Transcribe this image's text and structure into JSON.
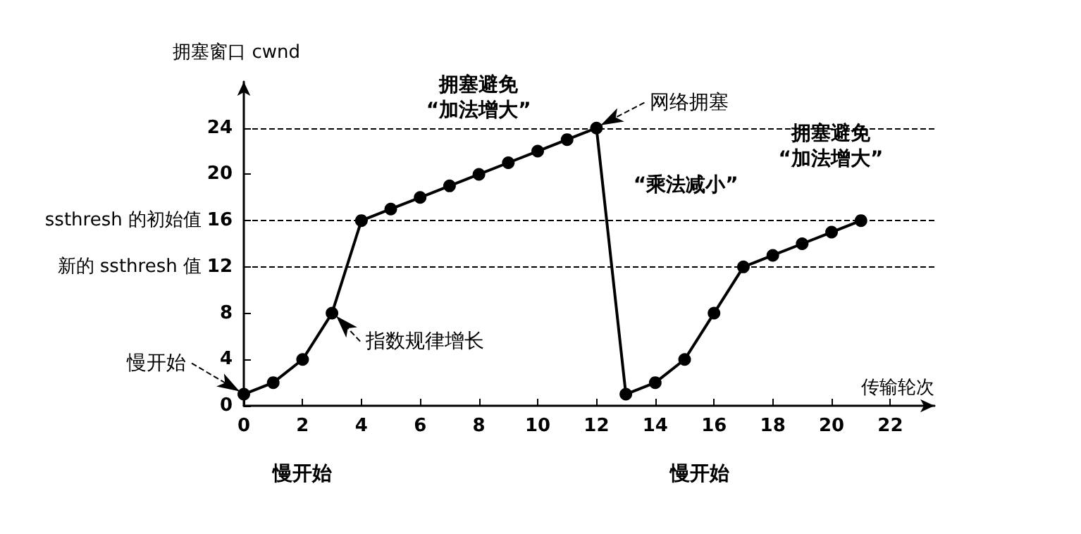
{
  "chart_data": {
    "type": "line",
    "ylabel": "拥塞窗口 cwnd",
    "xlabel": "传输轮次",
    "series": [
      {
        "color": "#000000",
        "x": [
          0,
          1,
          2,
          3,
          4,
          5,
          6,
          7,
          8,
          9,
          10,
          11,
          12,
          13,
          14,
          15,
          16,
          17,
          18,
          19,
          20,
          21
        ],
        "values": [
          1,
          2,
          4,
          8,
          16,
          17,
          18,
          19,
          20,
          21,
          22,
          23,
          24,
          1,
          2,
          4,
          8,
          12,
          13,
          14,
          15,
          16
        ]
      }
    ],
    "xlim": [
      0,
      23.5
    ],
    "xticks": [
      0,
      2,
      4,
      6,
      8,
      10,
      12,
      14,
      16,
      18,
      20,
      22
    ],
    "ylim": [
      0,
      28
    ],
    "yticks": [
      0,
      4,
      8,
      12,
      16,
      20,
      24
    ],
    "ref_lines": [
      {
        "axis": "y",
        "value": 24,
        "line_style": "dashed"
      },
      {
        "axis": "y",
        "value": 16,
        "label": "ssthresh 的初始值",
        "line_style": "dashed"
      },
      {
        "axis": "y",
        "value": 12,
        "label": "新的 ssthresh 值",
        "line_style": "dashed"
      }
    ],
    "annotations": [
      "拥塞避免\n“加法增大”",
      {
        "text": "网络拥塞",
        "x": 12,
        "y": 24
      },
      "“乘法减小”",
      "拥塞避免\n“加法增大”",
      {
        "text": "慢开始",
        "x": 0,
        "y": 1
      },
      {
        "text": "指数规律增长",
        "x": 3,
        "y": 8
      },
      "慢开始",
      "慢开始"
    ],
    "marker": "circle",
    "line_style": "solid"
  }
}
